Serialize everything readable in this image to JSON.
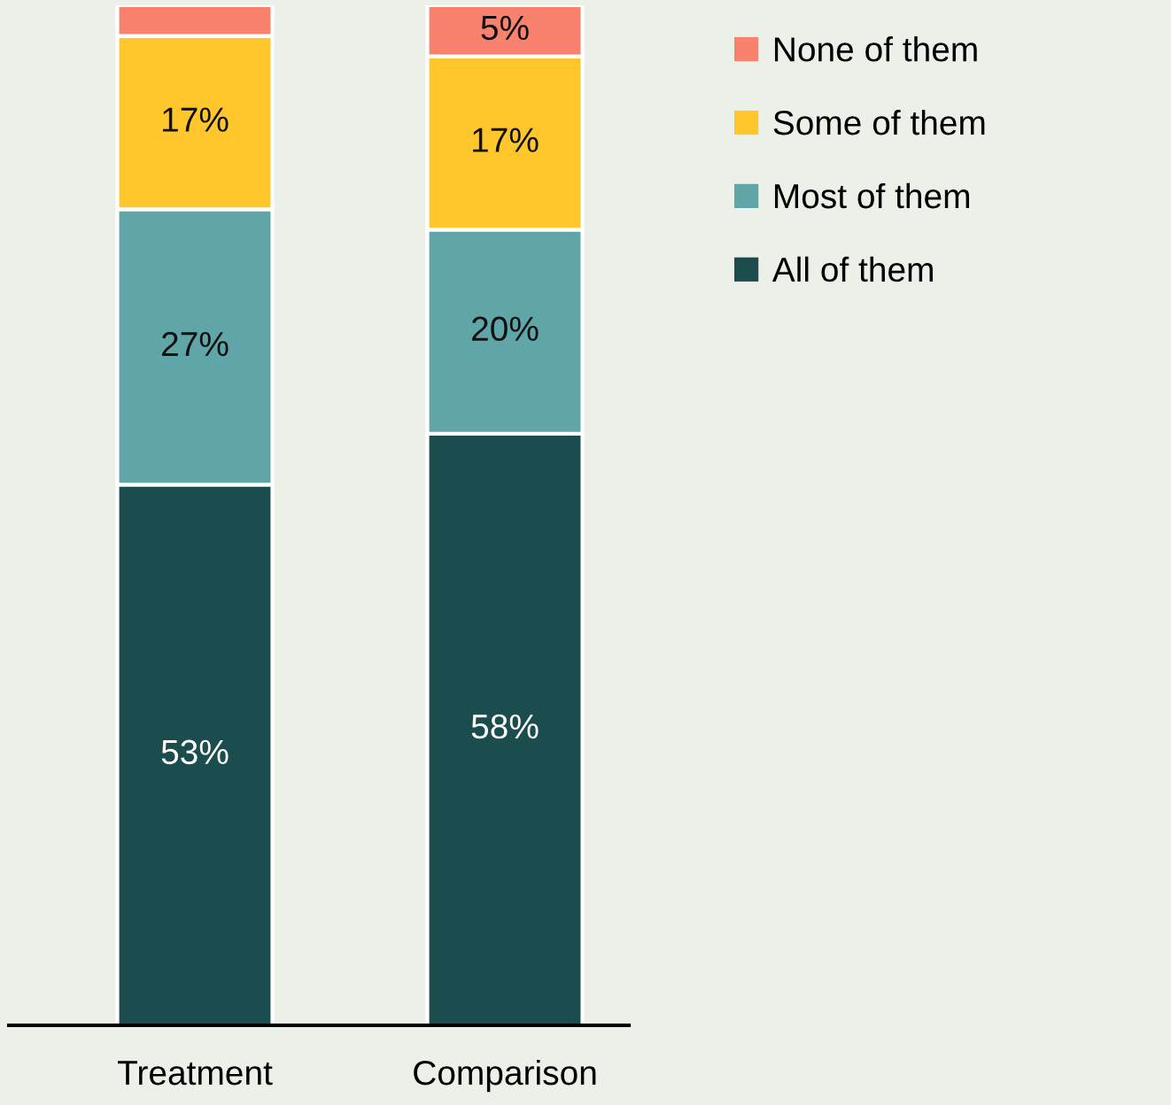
{
  "chart_data": {
    "type": "bar",
    "stacked": true,
    "categories": [
      "Treatment",
      "Comparison"
    ],
    "series": [
      {
        "name": "All of them",
        "color": "#1b4d4f",
        "values": [
          53,
          58
        ],
        "value_labels": [
          "53%",
          "58%"
        ]
      },
      {
        "name": "Most of them",
        "color": "#60a6a9",
        "values": [
          27,
          20
        ],
        "value_labels": [
          "27%",
          "20%"
        ]
      },
      {
        "name": "Some of them",
        "color": "#ffc72c",
        "values": [
          17,
          17
        ],
        "value_labels": [
          "17%",
          "17%"
        ]
      },
      {
        "name": "None of them",
        "color": "#f9826f",
        "values": [
          3,
          5
        ],
        "value_labels": [
          null,
          "5%"
        ]
      }
    ],
    "legend": "right",
    "tick_labels": "x"
  }
}
